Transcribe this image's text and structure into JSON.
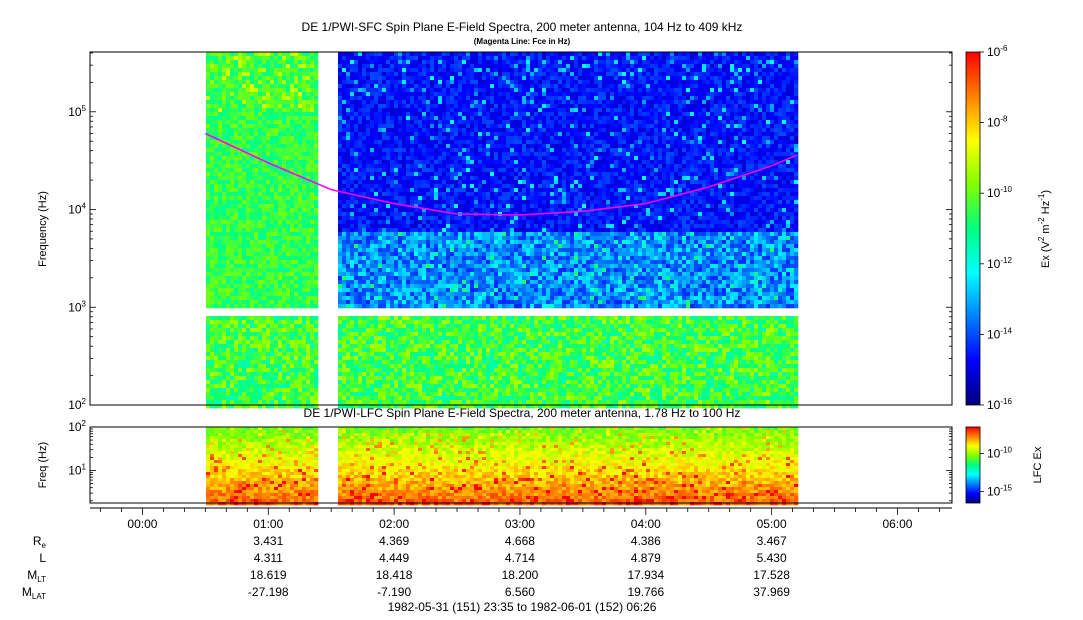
{
  "main_title": "DE 1/PWI-SFC  Spin Plane E-Field Spectra, 200 meter antenna, 104 Hz to 409 kHz",
  "main_subtitle": "(Magenta Line: Fce in Hz)",
  "lfc_title": "DE 1/PWI-LFC  Spin Plane E-Field Spectra, 200 meter antenna, 1.78 Hz to 100 Hz",
  "date_range": "1982-05-31 (151) 23:35 to 1982-06-01 (152) 06:26",
  "colors": {
    "magenta_line": "#ff00ff",
    "colorbar_stops": [
      "#000080",
      "#0000ff",
      "#0080ff",
      "#00ffff",
      "#00ff80",
      "#80ff00",
      "#ffff00",
      "#ff8000",
      "#ff0000"
    ]
  },
  "chart_data": [
    {
      "type": "heatmap",
      "name": "SFC spectrogram",
      "xlabel": "",
      "ylabel": "Frequency (Hz)",
      "y_scale": "log",
      "ylim": [
        100,
        409000
      ],
      "xlim": [
        "23:35",
        "06:26"
      ],
      "y_ticks": [
        {
          "value": 100,
          "label_base": "10",
          "label_exp": "2"
        },
        {
          "value": 1000,
          "label_base": "10",
          "label_exp": "3"
        },
        {
          "value": 10000,
          "label_base": "10",
          "label_exp": "4"
        },
        {
          "value": 100000,
          "label_base": "10",
          "label_exp": "5"
        }
      ],
      "data_gaps": [
        [
          "23:35",
          "00:30"
        ],
        [
          "01:24",
          "01:33"
        ],
        [
          "05:12",
          "06:26"
        ]
      ],
      "fce_line": {
        "label": "Fce in Hz",
        "points": [
          {
            "time": "00:30",
            "value": 60000
          },
          {
            "time": "01:00",
            "value": 30000
          },
          {
            "time": "01:30",
            "value": 16000
          },
          {
            "time": "02:00",
            "value": 11500
          },
          {
            "time": "02:30",
            "value": 9000
          },
          {
            "time": "03:00",
            "value": 8800
          },
          {
            "time": "03:30",
            "value": 9600
          },
          {
            "time": "04:00",
            "value": 11500
          },
          {
            "time": "04:30",
            "value": 17000
          },
          {
            "time": "05:00",
            "value": 28000
          },
          {
            "time": "05:12",
            "value": 36000
          }
        ]
      },
      "colorbar": {
        "label": "Ex (V² m⁻² Hz⁻¹)",
        "label_parts": [
          "Ex (V",
          "2",
          " m",
          "-2",
          " Hz",
          "-1",
          ")"
        ],
        "scale": "log",
        "range": [
          1e-16,
          1e-06
        ],
        "ticks": [
          {
            "value": 1e-06,
            "label_base": "10",
            "label_exp": "-6"
          },
          {
            "value": 1e-08,
            "label_base": "10",
            "label_exp": "-8"
          },
          {
            "value": 1e-10,
            "label_base": "10",
            "label_exp": "-10"
          },
          {
            "value": 1e-12,
            "label_base": "10",
            "label_exp": "-12"
          },
          {
            "value": 1e-14,
            "label_base": "10",
            "label_exp": "-14"
          },
          {
            "value": 1e-16,
            "label_base": "10",
            "label_exp": "-16"
          }
        ]
      }
    },
    {
      "type": "heatmap",
      "name": "LFC spectrogram",
      "ylabel": "Freq (Hz)",
      "y_scale": "log",
      "ylim": [
        1.78,
        100
      ],
      "y_ticks": [
        {
          "value": 10,
          "label_base": "10",
          "label_exp": "1"
        },
        {
          "value": 100,
          "label_base": "10",
          "label_exp": "2"
        }
      ],
      "colorbar": {
        "label": "LFC Ex",
        "scale": "log",
        "ticks": [
          {
            "value": 1e-10,
            "label_base": "10",
            "label_exp": "-10"
          },
          {
            "value": 1e-15,
            "label_base": "10",
            "label_exp": "-15"
          }
        ]
      }
    }
  ],
  "time_axis": {
    "ticks": [
      "00:00",
      "01:00",
      "02:00",
      "03:00",
      "04:00",
      "05:00",
      "06:00"
    ]
  },
  "ephemeris": {
    "rows": [
      {
        "label_main": "R",
        "label_sub": "e",
        "values": [
          "3.431",
          "4.369",
          "4.668",
          "4.386",
          "3.467"
        ]
      },
      {
        "label_main": "L",
        "label_sub": "",
        "values": [
          "4.311",
          "4.449",
          "4.714",
          "4.879",
          "5.430"
        ]
      },
      {
        "label_main": "M",
        "label_sub": "LT",
        "values": [
          "18.619",
          "18.418",
          "18.200",
          "17.934",
          "17.528"
        ]
      },
      {
        "label_main": "M",
        "label_sub": "LAT",
        "values": [
          "-27.198",
          "-7.190",
          "6.560",
          "19.766",
          "37.969"
        ]
      }
    ]
  }
}
